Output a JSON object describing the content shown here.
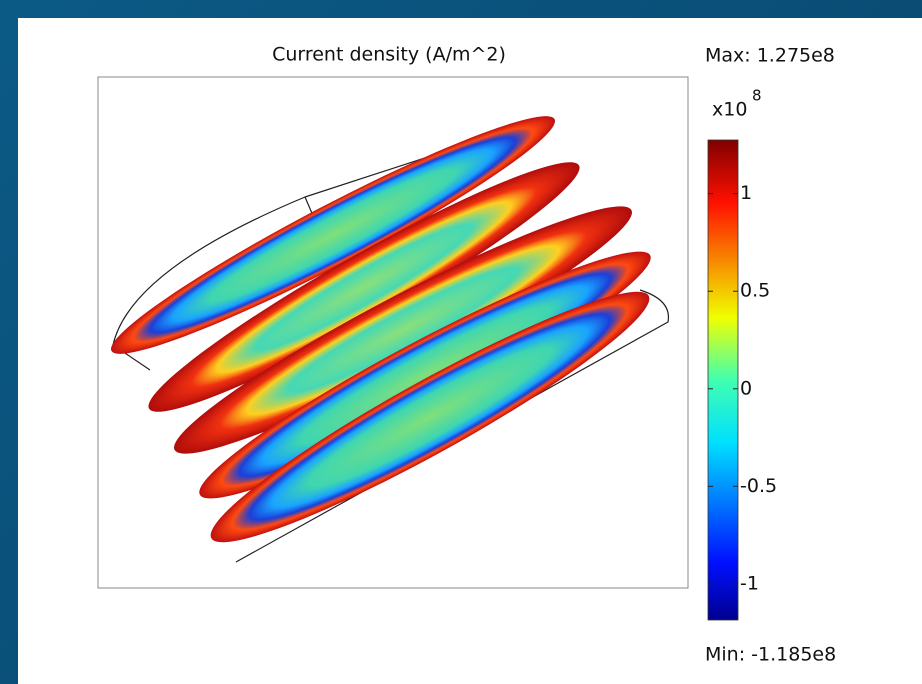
{
  "chart_data": {
    "type": "surface",
    "title": "Current density (A/m^2)",
    "max_label": "Max: 1.275e8",
    "min_label": "Min: -1.185e8",
    "colorbar": {
      "scale_base": "x10",
      "scale_exponent": "8",
      "lim": [
        -1.185,
        1.275
      ],
      "ticks": [
        -1,
        -0.5,
        0,
        0.5,
        1
      ]
    }
  }
}
